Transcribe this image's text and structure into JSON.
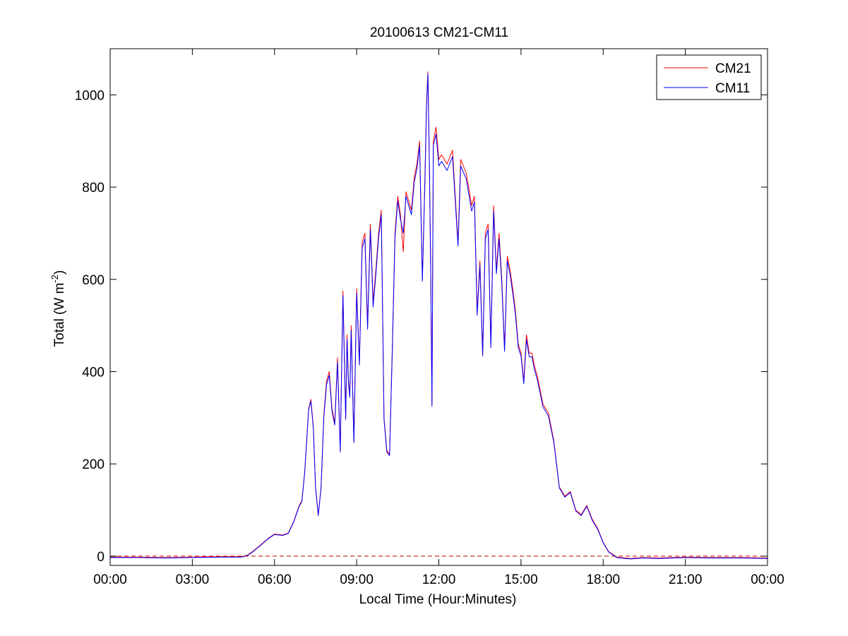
{
  "chart_data": {
    "type": "line",
    "title": "20100613 CM21-CM11",
    "xlabel": "Local Time (Hour:Minutes)",
    "ylabel_main": "Total (W m",
    "ylabel_sup": "-2",
    "ylabel_end": ")",
    "x_unit": "hours",
    "xlim": [
      0,
      24
    ],
    "ylim": [
      -20,
      1100
    ],
    "x_ticks": [
      0,
      3,
      6,
      9,
      12,
      15,
      18,
      21,
      24
    ],
    "x_tick_labels": [
      "00:00",
      "03:00",
      "06:00",
      "09:00",
      "12:00",
      "15:00",
      "18:00",
      "21:00",
      "00:00"
    ],
    "y_ticks": [
      0,
      200,
      400,
      600,
      800,
      1000
    ],
    "y_tick_labels": [
      "0",
      "200",
      "400",
      "600",
      "800",
      "1000"
    ],
    "grid": false,
    "legend_position": "top-right",
    "zero_reference_line": {
      "y": 0,
      "color": "#c00000",
      "style": "dashed"
    },
    "series": [
      {
        "name": "CM21",
        "color": "#ff0000",
        "x": [
          0,
          1,
          2,
          3,
          4,
          4.8,
          5.0,
          5.2,
          5.5,
          5.8,
          6.0,
          6.3,
          6.5,
          6.7,
          6.9,
          7.0,
          7.1,
          7.25,
          7.33,
          7.42,
          7.5,
          7.6,
          7.7,
          7.8,
          7.9,
          8.0,
          8.1,
          8.2,
          8.3,
          8.4,
          8.5,
          8.6,
          8.65,
          8.7,
          8.75,
          8.8,
          8.9,
          9.0,
          9.1,
          9.2,
          9.3,
          9.4,
          9.5,
          9.55,
          9.6,
          9.7,
          9.8,
          9.9,
          10.0,
          10.1,
          10.2,
          10.3,
          10.4,
          10.5,
          10.6,
          10.7,
          10.8,
          10.9,
          11.0,
          11.1,
          11.2,
          11.3,
          11.4,
          11.5,
          11.55,
          11.6,
          11.65,
          11.7,
          11.75,
          11.8,
          11.9,
          12.0,
          12.1,
          12.3,
          12.5,
          12.7,
          12.8,
          13.0,
          13.2,
          13.3,
          13.4,
          13.5,
          13.6,
          13.7,
          13.8,
          13.9,
          14.0,
          14.1,
          14.2,
          14.3,
          14.4,
          14.5,
          14.6,
          14.7,
          14.8,
          14.9,
          15.0,
          15.1,
          15.2,
          15.3,
          15.4,
          15.5,
          15.6,
          15.8,
          16.0,
          16.2,
          16.4,
          16.6,
          16.8,
          17.0,
          17.2,
          17.4,
          17.6,
          17.8,
          18.0,
          18.2,
          18.5,
          18.8,
          19.0,
          19.2,
          19.5,
          20.0,
          21.0,
          22.0,
          23.0,
          24.0
        ],
        "y": [
          -2,
          -2,
          -3,
          -2,
          -1,
          -1,
          2,
          10,
          25,
          40,
          48,
          46,
          50,
          75,
          110,
          120,
          180,
          320,
          340,
          280,
          150,
          90,
          150,
          305,
          380,
          400,
          320,
          290,
          430,
          230,
          575,
          300,
          480,
          380,
          350,
          500,
          250,
          580,
          420,
          680,
          700,
          500,
          720,
          640,
          550,
          620,
          700,
          750,
          300,
          230,
          220,
          450,
          700,
          780,
          740,
          660,
          790,
          770,
          750,
          820,
          850,
          900,
          600,
          840,
          980,
          1050,
          880,
          640,
          330,
          900,
          930,
          860,
          870,
          850,
          880,
          680,
          860,
          830,
          760,
          780,
          530,
          640,
          440,
          700,
          720,
          460,
          760,
          620,
          700,
          600,
          450,
          650,
          620,
          580,
          530,
          460,
          440,
          380,
          480,
          440,
          440,
          410,
          390,
          330,
          310,
          250,
          150,
          130,
          140,
          100,
          90,
          110,
          80,
          60,
          30,
          10,
          -2,
          -4,
          -5,
          -4,
          -3,
          -4,
          -2,
          -3,
          -3,
          -4
        ],
        "note_type": "time series"
      },
      {
        "name": "CM11",
        "color": "#0000ff",
        "x": [
          0,
          1,
          2,
          3,
          4,
          4.8,
          5.0,
          5.2,
          5.5,
          5.8,
          6.0,
          6.3,
          6.5,
          6.7,
          6.9,
          7.0,
          7.1,
          7.25,
          7.33,
          7.42,
          7.5,
          7.6,
          7.7,
          7.8,
          7.9,
          8.0,
          8.1,
          8.2,
          8.3,
          8.4,
          8.5,
          8.6,
          8.65,
          8.7,
          8.75,
          8.8,
          8.9,
          9.0,
          9.1,
          9.2,
          9.3,
          9.4,
          9.5,
          9.55,
          9.6,
          9.7,
          9.8,
          9.9,
          10.0,
          10.1,
          10.2,
          10.3,
          10.4,
          10.5,
          10.6,
          10.7,
          10.8,
          10.9,
          11.0,
          11.1,
          11.2,
          11.3,
          11.4,
          11.5,
          11.55,
          11.6,
          11.65,
          11.7,
          11.75,
          11.8,
          11.9,
          12.0,
          12.1,
          12.3,
          12.5,
          12.7,
          12.8,
          13.0,
          13.2,
          13.3,
          13.4,
          13.5,
          13.6,
          13.7,
          13.8,
          13.9,
          14.0,
          14.1,
          14.2,
          14.3,
          14.4,
          14.5,
          14.6,
          14.7,
          14.8,
          14.9,
          15.0,
          15.1,
          15.2,
          15.3,
          15.4,
          15.5,
          15.6,
          15.8,
          16.0,
          16.2,
          16.4,
          16.6,
          16.8,
          17.0,
          17.2,
          17.4,
          17.6,
          17.8,
          18.0,
          18.2,
          18.5,
          18.8,
          19.0,
          19.2,
          19.5,
          20.0,
          21.0,
          22.0,
          23.0,
          24.0
        ],
        "y": [
          -3,
          -3,
          -4,
          -3,
          -2,
          -2,
          1,
          9,
          24,
          39,
          47,
          45,
          49,
          74,
          108,
          118,
          178,
          318,
          336,
          276,
          148,
          88,
          148,
          300,
          372,
          392,
          314,
          284,
          420,
          226,
          565,
          296,
          470,
          374,
          344,
          490,
          246,
          570,
          414,
          668,
          688,
          492,
          708,
          630,
          540,
          610,
          690,
          740,
          296,
          226,
          218,
          444,
          690,
          770,
          730,
          700,
          780,
          760,
          740,
          810,
          840,
          890,
          596,
          830,
          970,
          1045,
          872,
          630,
          325,
          890,
          915,
          846,
          856,
          836,
          866,
          672,
          846,
          818,
          748,
          768,
          522,
          630,
          434,
          688,
          708,
          452,
          748,
          612,
          688,
          590,
          444,
          640,
          610,
          570,
          522,
          452,
          434,
          374,
          470,
          432,
          432,
          402,
          382,
          324,
          304,
          246,
          148,
          128,
          138,
          98,
          88,
          108,
          78,
          58,
          29,
          9,
          -3,
          -5,
          -6,
          -5,
          -4,
          -5,
          -3,
          -4,
          -4,
          -5
        ]
      }
    ]
  }
}
